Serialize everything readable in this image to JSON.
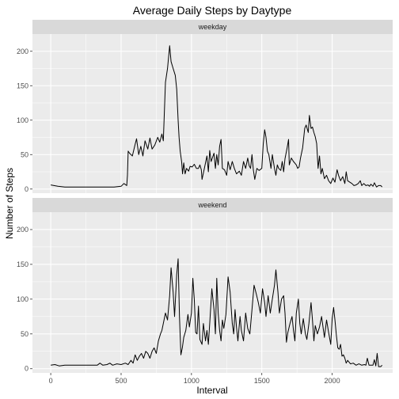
{
  "chart_data": {
    "type": "line",
    "title": "Average Daily Steps by Daytype",
    "xlabel": "Interval",
    "ylabel": "Number of Steps",
    "xlim": [
      -130,
      2430
    ],
    "ylim": [
      -6,
      225
    ],
    "x_ticks": [
      0,
      500,
      1000,
      1500,
      2000
    ],
    "y_ticks": [
      0,
      50,
      100,
      150,
      200
    ],
    "grid": true,
    "colors": {
      "panel": "#ebebeb",
      "strip": "#d9d9d9",
      "grid": "#ffffff",
      "line": "#000000"
    },
    "panels": [
      {
        "name": "weekday",
        "points": [
          [
            0,
            6
          ],
          [
            50,
            4
          ],
          [
            100,
            3
          ],
          [
            200,
            3
          ],
          [
            300,
            3
          ],
          [
            400,
            3
          ],
          [
            450,
            3
          ],
          [
            500,
            4
          ],
          [
            520,
            8
          ],
          [
            540,
            5
          ],
          [
            545,
            20
          ],
          [
            550,
            55
          ],
          [
            560,
            52
          ],
          [
            580,
            48
          ],
          [
            600,
            65
          ],
          [
            610,
            73
          ],
          [
            625,
            50
          ],
          [
            640,
            62
          ],
          [
            655,
            48
          ],
          [
            670,
            70
          ],
          [
            690,
            58
          ],
          [
            705,
            74
          ],
          [
            720,
            58
          ],
          [
            740,
            64
          ],
          [
            760,
            75
          ],
          [
            775,
            68
          ],
          [
            790,
            80
          ],
          [
            800,
            70
          ],
          [
            815,
            155
          ],
          [
            830,
            175
          ],
          [
            845,
            208
          ],
          [
            855,
            185
          ],
          [
            870,
            175
          ],
          [
            885,
            165
          ],
          [
            895,
            145
          ],
          [
            905,
            100
          ],
          [
            912,
            75
          ],
          [
            920,
            55
          ],
          [
            930,
            40
          ],
          [
            937,
            22
          ],
          [
            945,
            38
          ],
          [
            955,
            22
          ],
          [
            965,
            30
          ],
          [
            980,
            26
          ],
          [
            990,
            33
          ],
          [
            1005,
            32
          ],
          [
            1020,
            36
          ],
          [
            1035,
            30
          ],
          [
            1050,
            30
          ],
          [
            1060,
            35
          ],
          [
            1070,
            28
          ],
          [
            1075,
            14
          ],
          [
            1090,
            28
          ],
          [
            1110,
            48
          ],
          [
            1120,
            25
          ],
          [
            1130,
            56
          ],
          [
            1140,
            40
          ],
          [
            1160,
            52
          ],
          [
            1170,
            30
          ],
          [
            1180,
            50
          ],
          [
            1190,
            35
          ],
          [
            1200,
            62
          ],
          [
            1210,
            72
          ],
          [
            1220,
            30
          ],
          [
            1235,
            28
          ],
          [
            1250,
            20
          ],
          [
            1260,
            40
          ],
          [
            1275,
            28
          ],
          [
            1290,
            40
          ],
          [
            1305,
            30
          ],
          [
            1320,
            22
          ],
          [
            1340,
            26
          ],
          [
            1355,
            20
          ],
          [
            1370,
            40
          ],
          [
            1385,
            30
          ],
          [
            1400,
            45
          ],
          [
            1410,
            34
          ],
          [
            1420,
            30
          ],
          [
            1430,
            50
          ],
          [
            1440,
            28
          ],
          [
            1450,
            14
          ],
          [
            1465,
            30
          ],
          [
            1480,
            27
          ],
          [
            1500,
            30
          ],
          [
            1510,
            65
          ],
          [
            1520,
            86
          ],
          [
            1530,
            75
          ],
          [
            1540,
            55
          ],
          [
            1550,
            50
          ],
          [
            1565,
            30
          ],
          [
            1575,
            50
          ],
          [
            1590,
            30
          ],
          [
            1600,
            20
          ],
          [
            1610,
            35
          ],
          [
            1620,
            30
          ],
          [
            1635,
            27
          ],
          [
            1645,
            40
          ],
          [
            1655,
            25
          ],
          [
            1665,
            44
          ],
          [
            1680,
            60
          ],
          [
            1690,
            72
          ],
          [
            1695,
            35
          ],
          [
            1710,
            45
          ],
          [
            1725,
            40
          ],
          [
            1745,
            35
          ],
          [
            1755,
            30
          ],
          [
            1765,
            32
          ],
          [
            1775,
            45
          ],
          [
            1790,
            60
          ],
          [
            1805,
            88
          ],
          [
            1815,
            93
          ],
          [
            1830,
            82
          ],
          [
            1838,
            107
          ],
          [
            1850,
            88
          ],
          [
            1860,
            90
          ],
          [
            1870,
            82
          ],
          [
            1880,
            76
          ],
          [
            1890,
            66
          ],
          [
            1900,
            30
          ],
          [
            1910,
            48
          ],
          [
            1920,
            22
          ],
          [
            1930,
            30
          ],
          [
            1945,
            15
          ],
          [
            1960,
            20
          ],
          [
            1975,
            12
          ],
          [
            1990,
            8
          ],
          [
            2005,
            16
          ],
          [
            2020,
            10
          ],
          [
            2035,
            28
          ],
          [
            2045,
            20
          ],
          [
            2060,
            12
          ],
          [
            2075,
            18
          ],
          [
            2090,
            8
          ],
          [
            2100,
            25
          ],
          [
            2110,
            12
          ],
          [
            2125,
            10
          ],
          [
            2140,
            8
          ],
          [
            2155,
            5
          ],
          [
            2170,
            6
          ],
          [
            2185,
            8
          ],
          [
            2200,
            12
          ],
          [
            2210,
            5
          ],
          [
            2225,
            8
          ],
          [
            2240,
            5
          ],
          [
            2255,
            6
          ],
          [
            2265,
            4
          ],
          [
            2275,
            7
          ],
          [
            2290,
            4
          ],
          [
            2300,
            9
          ],
          [
            2315,
            3
          ],
          [
            2330,
            5
          ],
          [
            2345,
            5
          ],
          [
            2355,
            3
          ]
        ]
      },
      {
        "name": "weekend",
        "points": [
          [
            0,
            5
          ],
          [
            30,
            6
          ],
          [
            60,
            4
          ],
          [
            100,
            5
          ],
          [
            150,
            5
          ],
          [
            200,
            5
          ],
          [
            250,
            5
          ],
          [
            300,
            5
          ],
          [
            330,
            5
          ],
          [
            350,
            8
          ],
          [
            370,
            5
          ],
          [
            400,
            6
          ],
          [
            420,
            8
          ],
          [
            440,
            5
          ],
          [
            470,
            7
          ],
          [
            500,
            6
          ],
          [
            530,
            8
          ],
          [
            550,
            6
          ],
          [
            570,
            12
          ],
          [
            585,
            8
          ],
          [
            600,
            20
          ],
          [
            615,
            12
          ],
          [
            630,
            18
          ],
          [
            645,
            22
          ],
          [
            660,
            15
          ],
          [
            675,
            25
          ],
          [
            690,
            22
          ],
          [
            705,
            15
          ],
          [
            720,
            25
          ],
          [
            735,
            30
          ],
          [
            750,
            22
          ],
          [
            765,
            40
          ],
          [
            780,
            50
          ],
          [
            790,
            55
          ],
          [
            800,
            65
          ],
          [
            815,
            80
          ],
          [
            830,
            70
          ],
          [
            845,
            105
          ],
          [
            855,
            145
          ],
          [
            870,
            110
          ],
          [
            880,
            75
          ],
          [
            895,
            135
          ],
          [
            905,
            158
          ],
          [
            915,
            75
          ],
          [
            925,
            20
          ],
          [
            935,
            30
          ],
          [
            945,
            45
          ],
          [
            960,
            55
          ],
          [
            975,
            78
          ],
          [
            985,
            60
          ],
          [
            1000,
            80
          ],
          [
            1010,
            130
          ],
          [
            1020,
            100
          ],
          [
            1030,
            52
          ],
          [
            1040,
            50
          ],
          [
            1050,
            90
          ],
          [
            1060,
            42
          ],
          [
            1075,
            35
          ],
          [
            1085,
            65
          ],
          [
            1100,
            40
          ],
          [
            1110,
            55
          ],
          [
            1120,
            35
          ],
          [
            1130,
            65
          ],
          [
            1145,
            115
          ],
          [
            1160,
            85
          ],
          [
            1170,
            50
          ],
          [
            1180,
            130
          ],
          [
            1190,
            80
          ],
          [
            1200,
            55
          ],
          [
            1210,
            40
          ],
          [
            1220,
            70
          ],
          [
            1230,
            58
          ],
          [
            1245,
            78
          ],
          [
            1260,
            132
          ],
          [
            1275,
            110
          ],
          [
            1290,
            65
          ],
          [
            1300,
            50
          ],
          [
            1310,
            85
          ],
          [
            1320,
            60
          ],
          [
            1330,
            40
          ],
          [
            1345,
            75
          ],
          [
            1355,
            55
          ],
          [
            1370,
            40
          ],
          [
            1385,
            80
          ],
          [
            1400,
            58
          ],
          [
            1415,
            50
          ],
          [
            1430,
            85
          ],
          [
            1445,
            120
          ],
          [
            1460,
            108
          ],
          [
            1475,
            95
          ],
          [
            1490,
            80
          ],
          [
            1505,
            115
          ],
          [
            1520,
            95
          ],
          [
            1530,
            75
          ],
          [
            1545,
            105
          ],
          [
            1560,
            80
          ],
          [
            1575,
            100
          ],
          [
            1590,
            120
          ],
          [
            1600,
            142
          ],
          [
            1615,
            110
          ],
          [
            1625,
            80
          ],
          [
            1640,
            100
          ],
          [
            1655,
            105
          ],
          [
            1665,
            80
          ],
          [
            1675,
            38
          ],
          [
            1685,
            52
          ],
          [
            1700,
            65
          ],
          [
            1715,
            75
          ],
          [
            1725,
            55
          ],
          [
            1735,
            40
          ],
          [
            1745,
            80
          ],
          [
            1760,
            100
          ],
          [
            1770,
            65
          ],
          [
            1780,
            50
          ],
          [
            1795,
            72
          ],
          [
            1810,
            50
          ],
          [
            1820,
            42
          ],
          [
            1835,
            65
          ],
          [
            1850,
            95
          ],
          [
            1860,
            70
          ],
          [
            1870,
            40
          ],
          [
            1880,
            62
          ],
          [
            1895,
            50
          ],
          [
            1910,
            60
          ],
          [
            1925,
            75
          ],
          [
            1935,
            60
          ],
          [
            1945,
            45
          ],
          [
            1960,
            70
          ],
          [
            1975,
            52
          ],
          [
            1990,
            35
          ],
          [
            2000,
            72
          ],
          [
            2010,
            88
          ],
          [
            2020,
            70
          ],
          [
            2030,
            48
          ],
          [
            2040,
            30
          ],
          [
            2050,
            28
          ],
          [
            2060,
            35
          ],
          [
            2070,
            18
          ],
          [
            2080,
            20
          ],
          [
            2090,
            15
          ],
          [
            2100,
            8
          ],
          [
            2110,
            12
          ],
          [
            2130,
            7
          ],
          [
            2150,
            8
          ],
          [
            2170,
            5
          ],
          [
            2190,
            7
          ],
          [
            2210,
            5
          ],
          [
            2230,
            6
          ],
          [
            2240,
            5
          ],
          [
            2250,
            15
          ],
          [
            2262,
            5
          ],
          [
            2275,
            5
          ],
          [
            2290,
            5
          ],
          [
            2300,
            13
          ],
          [
            2310,
            4
          ],
          [
            2320,
            22
          ],
          [
            2330,
            3
          ],
          [
            2345,
            3
          ],
          [
            2355,
            5
          ]
        ]
      }
    ]
  }
}
